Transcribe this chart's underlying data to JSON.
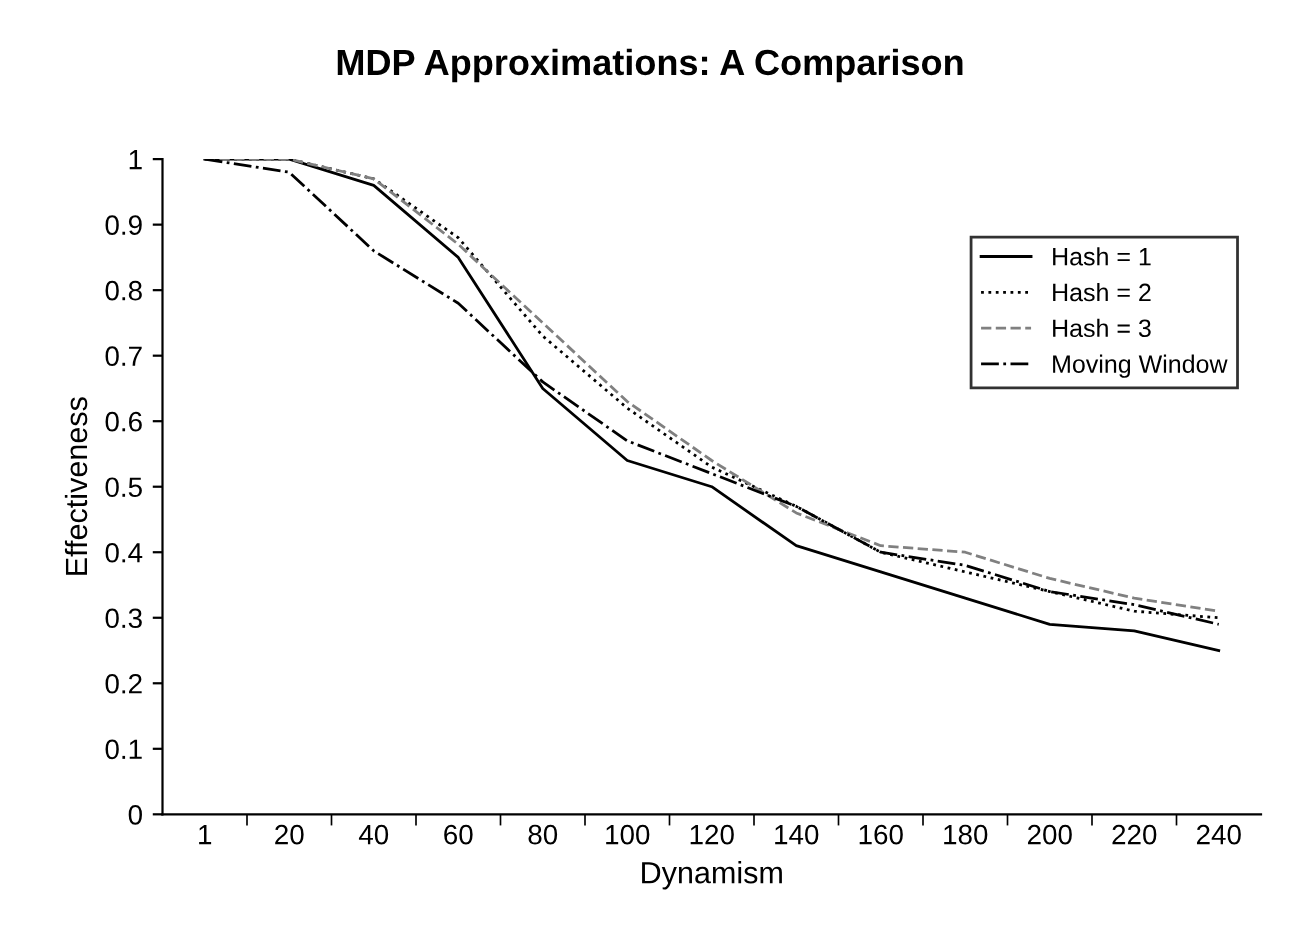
{
  "chart_data": {
    "type": "line",
    "title": "MDP Approximations: A Comparison",
    "xlabel": "Dynamism",
    "ylabel": "Effectiveness",
    "categories": [
      "1",
      "20",
      "40",
      "60",
      "80",
      "100",
      "120",
      "140",
      "160",
      "180",
      "200",
      "220",
      "240"
    ],
    "series": [
      {
        "name": "Hash = 1",
        "color": "#000000",
        "line_style": "solid",
        "values": [
          1,
          1,
          0.96,
          0.85,
          0.65,
          0.54,
          0.5,
          0.41,
          0.37,
          0.33,
          0.29,
          0.28,
          0.25
        ]
      },
      {
        "name": "Hash = 2",
        "color": "#000000",
        "line_style": "dotted",
        "values": [
          1,
          1,
          0.97,
          0.88,
          0.73,
          0.62,
          0.53,
          0.47,
          0.4,
          0.37,
          0.34,
          0.31,
          0.3
        ]
      },
      {
        "name": "Hash = 3",
        "color": "#808080",
        "line_style": "dashed",
        "values": [
          1,
          1,
          0.97,
          0.87,
          0.75,
          0.63,
          0.54,
          0.46,
          0.41,
          0.4,
          0.36,
          0.33,
          0.31
        ]
      },
      {
        "name": "Moving Window",
        "color": "#000000",
        "line_style": "dashdot",
        "values": [
          1,
          0.98,
          0.86,
          0.78,
          0.66,
          0.57,
          0.52,
          0.47,
          0.4,
          0.38,
          0.34,
          0.32,
          0.29
        ]
      }
    ],
    "ylim": [
      0,
      1
    ],
    "yticks": [
      0,
      0.1,
      0.2,
      0.3,
      0.4,
      0.5,
      0.6,
      0.7,
      0.8,
      0.9,
      1
    ],
    "grid": false,
    "legend": "top right",
    "marker": "none"
  }
}
